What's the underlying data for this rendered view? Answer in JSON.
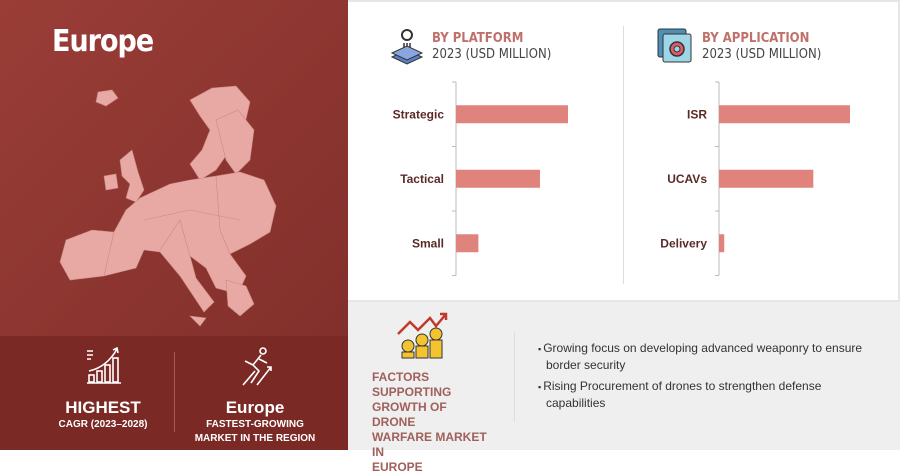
{
  "region": {
    "title": "Europe"
  },
  "stats": [
    {
      "icon": "growth-chart-icon",
      "headline": "HIGHEST",
      "caption": "CAGR (2023–2028)"
    },
    {
      "icon": "runner-arrow-icon",
      "headline": "Europe",
      "caption_line1": "FASTEST-GROWING",
      "caption_line2": "MARKET IN THE REGION"
    }
  ],
  "chart_data": [
    {
      "type": "bar",
      "orientation": "horizontal",
      "title": "BY PLATFORM",
      "subtitle": "2023 (USD MILLION)",
      "icon": "platform-layers-icon",
      "categories": [
        "Strategic",
        "Tactical",
        "Small"
      ],
      "values": [
        100,
        75,
        20
      ],
      "value_note": "relative bar lengths; no values printed",
      "color": "#e0837c"
    },
    {
      "type": "bar",
      "orientation": "horizontal",
      "title": "BY APPLICATION",
      "subtitle": "2023 (USD MILLION)",
      "icon": "application-gear-icon",
      "categories": [
        "ISR",
        "UCAVs",
        "Delivery"
      ],
      "values": [
        100,
        72,
        4
      ],
      "color": "#e0837c"
    }
  ],
  "factors": {
    "icon": "coins-growth-icon",
    "heading_lines": [
      "FACTORS SUPPORTING",
      "GROWTH OF DRONE",
      "WARFARE MARKET IN",
      "EUROPE"
    ],
    "bullets": [
      "Growing focus on developing advanced weaponry to ensure border security",
      "Rising Procurement of drones to strengthen defense capabilities"
    ]
  },
  "colors": {
    "panel": "#8b3530",
    "bar": "#e0837c",
    "map": "#e8a9a5",
    "accent_text": "#c0706b"
  }
}
